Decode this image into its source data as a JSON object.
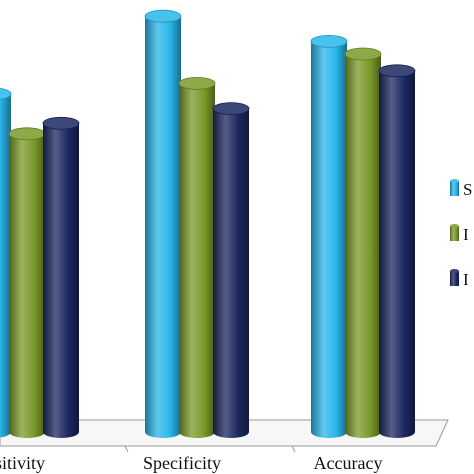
{
  "chart_data": {
    "type": "bar",
    "style": "3d-cylinder",
    "categories": [
      "Sensitivity",
      "Specificity",
      "Accuracy"
    ],
    "visible_category_text": [
      "sitivity",
      "Specificity",
      "Accuracy"
    ],
    "series": [
      {
        "legend_glyph": "S",
        "color": "#29b6ea",
        "values": [
          0.805,
          0.99,
          0.93
        ]
      },
      {
        "legend_glyph": "I",
        "color": "#7a9a2a",
        "values": [
          0.71,
          0.83,
          0.9
        ]
      },
      {
        "legend_glyph": "I",
        "color": "#1c2860",
        "values": [
          0.735,
          0.77,
          0.86
        ]
      }
    ],
    "ylim": [
      0,
      1
    ],
    "grid": false,
    "axis_labels_visible": false,
    "legend_position": "right"
  }
}
